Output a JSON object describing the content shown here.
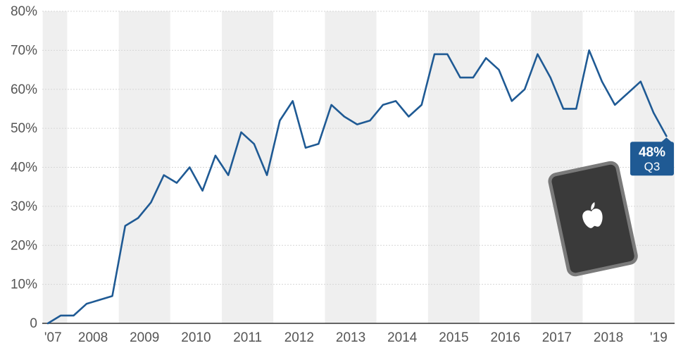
{
  "chart_data": {
    "type": "line",
    "title": "",
    "xlabel": "",
    "ylabel": "",
    "ylim": [
      0,
      80
    ],
    "grid": true,
    "y_ticks": [
      "0",
      "10%",
      "20%",
      "30%",
      "40%",
      "50%",
      "60%",
      "70%",
      "80%"
    ],
    "x_tick_labels": [
      "'07",
      "2008",
      "2009",
      "2010",
      "2011",
      "2012",
      "2013",
      "2014",
      "2015",
      "2016",
      "2017",
      "2018",
      "'19"
    ],
    "series": [
      {
        "color": "#1f5a94",
        "values": [
          0,
          2,
          2,
          5,
          6,
          7,
          25,
          27,
          31,
          38,
          36,
          40,
          34,
          43,
          38,
          49,
          46,
          38,
          52,
          57,
          45,
          46,
          56,
          53,
          51,
          52,
          56,
          57,
          53,
          56,
          69,
          69,
          63,
          63,
          68,
          65,
          57,
          60,
          69,
          63,
          55,
          55,
          70,
          62,
          56,
          59,
          62,
          54,
          48
        ]
      }
    ],
    "annotation": {
      "value": "48%",
      "period": "Q3",
      "color": "#1f5a94"
    },
    "decorative_icon": "smartphone-apple-logo-icon"
  }
}
